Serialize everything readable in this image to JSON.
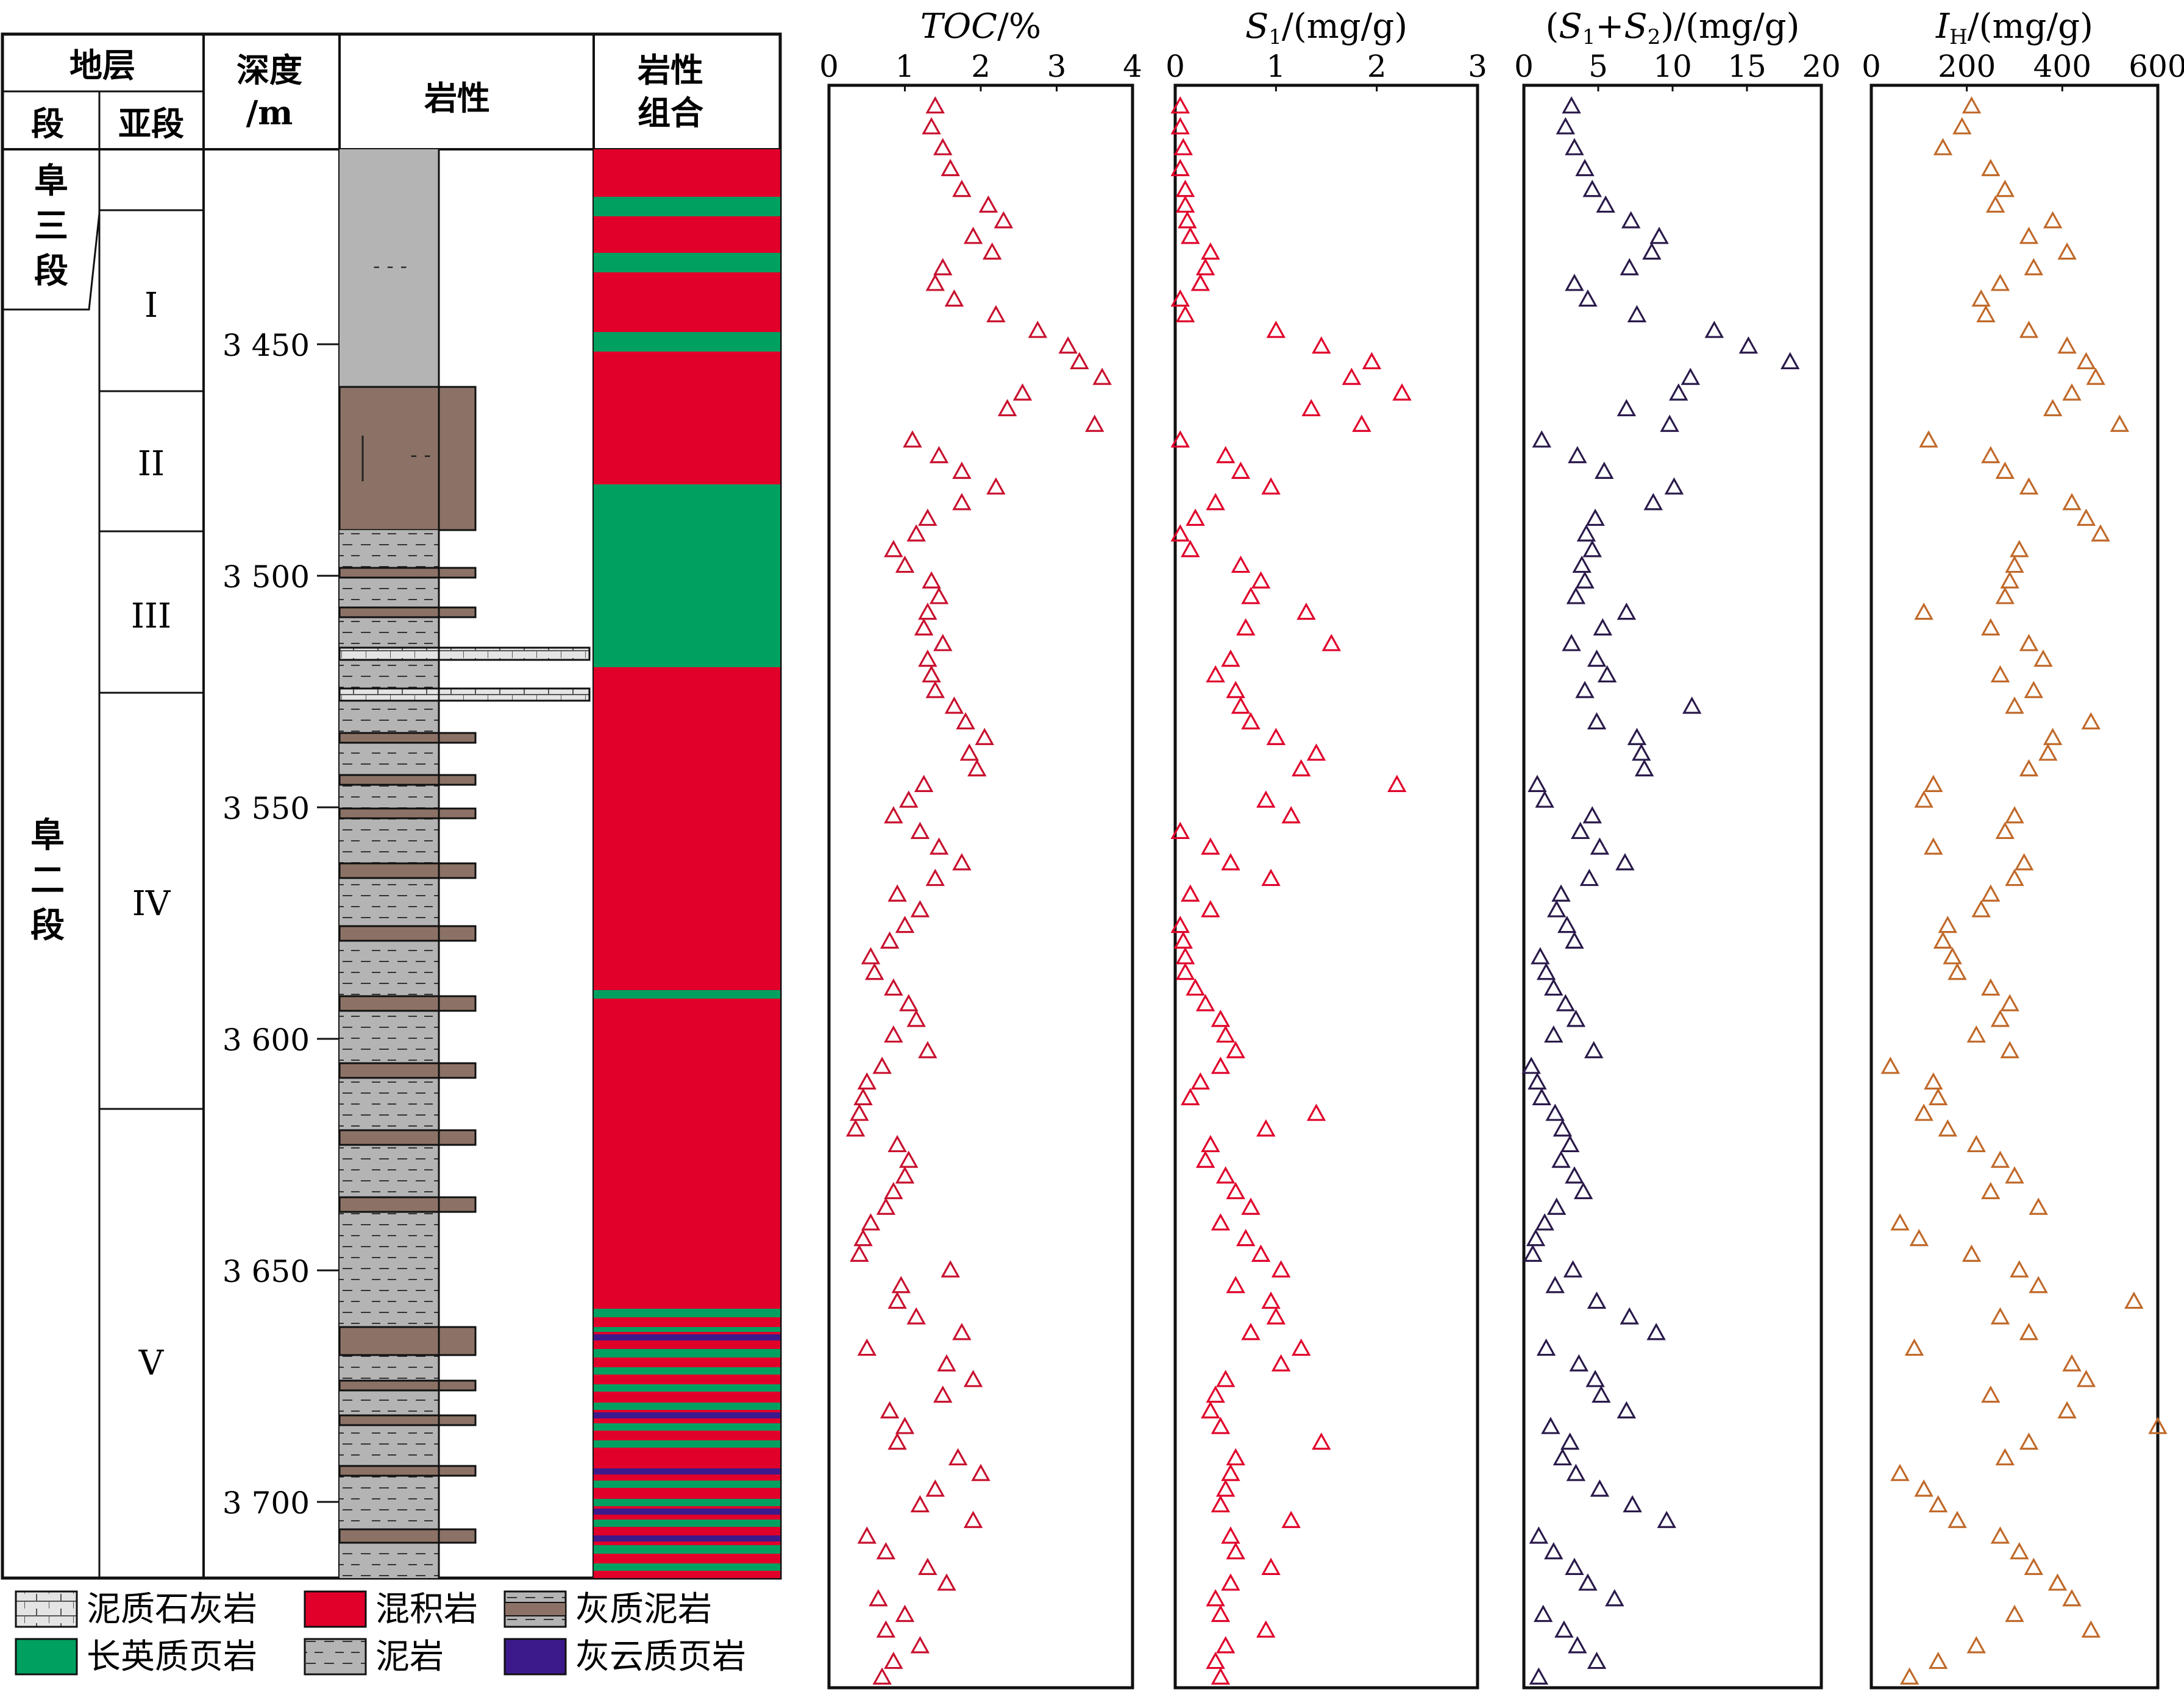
{
  "column_headers": {
    "strata": "地层",
    "member": "段",
    "submember": "亚段",
    "depth_line1": "深度",
    "depth_line2": "/m",
    "lithology": "岩性",
    "assemblage_line1": "岩性",
    "assemblage_line2": "组合"
  },
  "members": [
    {
      "name": "阜三段",
      "chars": [
        "阜",
        "三",
        "段"
      ]
    },
    {
      "name": "阜二段",
      "chars": [
        "阜",
        "二",
        "段"
      ]
    }
  ],
  "submembers": [
    "I",
    "II",
    "III",
    "IV",
    "V"
  ],
  "depth_axis": {
    "min": 3410,
    "max": 3717,
    "ticks": [
      3450,
      3500,
      3550,
      3600,
      3650,
      3700
    ],
    "tick_labels": [
      "3 450",
      "3 500",
      "3 550",
      "3 600",
      "3 650",
      "3 700"
    ]
  },
  "colors": {
    "hybrid": "#e0002a",
    "felsic": "#00a061",
    "dolomitic": "#3d1a8c",
    "mudstone": "#b4b4b4",
    "calcareous_mud": "#8c7266",
    "marl": "#e4e4e4",
    "toc": "#c8102e",
    "s1": "#e0002a",
    "s1s2": "#2a1a4a",
    "ih": "#c0692a"
  },
  "legend": [
    {
      "label": "泥质石灰岩",
      "swatch": "marl"
    },
    {
      "label": "混积岩",
      "swatch": "hybrid"
    },
    {
      "label": "灰质泥岩",
      "swatch": "calcareous_mud"
    },
    {
      "label": "长英质页岩",
      "swatch": "felsic"
    },
    {
      "label": "泥岩",
      "swatch": "mudstone"
    },
    {
      "label": "灰云质页岩",
      "swatch": "dolomitic"
    }
  ],
  "tracks": [
    {
      "key": "toc",
      "title": "TOC/%",
      "ticks": [
        0,
        1,
        2,
        3,
        4
      ],
      "tick_labels": [
        "0",
        "1",
        "2",
        "3",
        "4"
      ],
      "xlim": [
        0,
        4
      ]
    },
    {
      "key": "s1",
      "title": "S1/(mg/g)",
      "ticks": [
        0,
        1,
        2,
        3
      ],
      "tick_labels": [
        "0",
        "1",
        "2",
        "3"
      ],
      "xlim": [
        0,
        3
      ]
    },
    {
      "key": "s1s2",
      "title": "(S1+S2)/(mg/g)",
      "ticks": [
        0,
        5,
        10,
        15,
        20
      ],
      "tick_labels": [
        "0",
        "5",
        "10",
        "15",
        "20"
      ],
      "xlim": [
        0,
        20
      ]
    },
    {
      "key": "ih",
      "title": "IH/(mg/g)",
      "ticks": [
        0,
        200,
        400,
        600
      ],
      "tick_labels": [
        "0",
        "200",
        "400",
        "600"
      ],
      "xlim": [
        0,
        600
      ]
    }
  ],
  "chart_data": {
    "type": "scatter",
    "y_axis": {
      "label": "深度/m",
      "ylim": [
        3717,
        3410
      ],
      "reversed": true
    },
    "depth": [
      3414,
      3418,
      3422,
      3426,
      3430,
      3433,
      3436,
      3439,
      3442,
      3445,
      3448,
      3451,
      3454,
      3457,
      3460,
      3463,
      3466,
      3469,
      3472,
      3475,
      3478,
      3481,
      3484,
      3487,
      3490,
      3493,
      3496,
      3499,
      3502,
      3505,
      3508,
      3511,
      3514,
      3517,
      3520,
      3523,
      3526,
      3529,
      3532,
      3535,
      3538,
      3541,
      3544,
      3547,
      3550,
      3553,
      3556,
      3559,
      3562,
      3565,
      3568,
      3571,
      3574,
      3577,
      3580,
      3583,
      3586,
      3589,
      3592,
      3595,
      3598,
      3601,
      3604,
      3607,
      3610,
      3613,
      3616,
      3619,
      3622,
      3625,
      3628,
      3631,
      3634,
      3637,
      3640,
      3643,
      3646,
      3649,
      3652,
      3655,
      3658,
      3661,
      3664,
      3667,
      3670,
      3673,
      3676,
      3679,
      3682,
      3685,
      3688,
      3691,
      3694,
      3697,
      3700,
      3703,
      3706,
      3709,
      3712,
      3715
    ],
    "series": [
      {
        "name": "TOC/%",
        "key": "toc",
        "values": [
          1.4,
          1.35,
          1.5,
          1.6,
          1.75,
          2.1,
          2.3,
          1.9,
          2.15,
          1.5,
          1.4,
          1.65,
          2.2,
          2.75,
          3.15,
          3.3,
          3.6,
          2.55,
          2.35,
          3.5,
          1.1,
          1.45,
          1.75,
          2.2,
          1.75,
          1.3,
          1.15,
          0.85,
          1.0,
          1.35,
          1.45,
          1.3,
          1.25,
          1.5,
          1.3,
          1.35,
          1.4,
          1.65,
          1.8,
          2.05,
          1.85,
          1.95,
          1.25,
          1.05,
          0.85,
          1.2,
          1.45,
          1.75,
          1.4,
          0.9,
          1.2,
          1.0,
          0.8,
          0.55,
          0.6,
          0.85,
          1.05,
          1.15,
          0.85,
          1.3,
          0.7,
          0.5,
          0.45,
          0.4,
          0.35,
          0.9,
          1.05,
          1.0,
          0.85,
          0.75,
          0.55,
          0.45,
          0.4,
          1.6,
          0.95,
          0.9,
          1.15,
          1.75,
          0.5,
          1.55,
          1.9,
          1.5,
          0.8,
          1.0,
          0.9,
          1.7,
          2.0,
          1.4,
          1.2,
          1.9,
          0.5,
          0.75,
          1.3,
          1.55,
          0.65,
          1.0,
          0.75,
          1.2,
          0.85,
          0.7
        ]
      },
      {
        "name": "S1/(mg/g)",
        "key": "s1",
        "values": [
          0.05,
          0.05,
          0.08,
          0.05,
          0.1,
          0.1,
          0.12,
          0.15,
          0.35,
          0.3,
          0.25,
          0.05,
          0.1,
          1.0,
          1.45,
          1.95,
          1.75,
          2.25,
          1.35,
          1.85,
          0.05,
          0.5,
          0.65,
          0.95,
          0.4,
          0.2,
          0.05,
          0.15,
          0.65,
          0.85,
          0.75,
          1.3,
          0.7,
          1.55,
          0.55,
          0.4,
          0.6,
          0.65,
          0.75,
          1.0,
          1.4,
          1.25,
          2.2,
          0.9,
          1.15,
          0.05,
          0.35,
          0.55,
          0.95,
          0.15,
          0.35,
          0.05,
          0.08,
          0.1,
          0.1,
          0.2,
          0.3,
          0.45,
          0.5,
          0.6,
          0.45,
          0.25,
          0.15,
          1.4,
          0.9,
          0.35,
          0.3,
          0.5,
          0.6,
          0.75,
          0.45,
          0.7,
          0.85,
          1.05,
          0.6,
          0.95,
          1.0,
          0.75,
          1.25,
          1.05,
          0.5,
          0.4,
          0.35,
          0.45,
          1.45,
          0.6,
          0.55,
          0.5,
          0.45,
          1.15,
          0.55,
          0.6,
          0.95,
          0.55,
          0.4,
          0.45,
          0.9,
          0.5,
          0.4,
          0.45
        ]
      },
      {
        "name": "(S1+S2)/(mg/g)",
        "key": "s1s2",
        "values": [
          3.2,
          2.8,
          3.4,
          4.1,
          4.6,
          5.5,
          7.2,
          9.1,
          8.6,
          7.1,
          3.4,
          4.3,
          7.6,
          12.8,
          15.1,
          17.9,
          11.2,
          10.4,
          6.9,
          9.8,
          1.2,
          3.6,
          5.4,
          10.1,
          8.7,
          4.8,
          4.2,
          4.6,
          3.9,
          4.1,
          3.5,
          6.9,
          5.3,
          3.2,
          4.9,
          5.6,
          4.1,
          11.3,
          4.9,
          7.6,
          7.9,
          8.1,
          0.9,
          1.4,
          4.6,
          3.8,
          5.1,
          6.8,
          4.4,
          2.5,
          2.2,
          2.9,
          3.4,
          1.1,
          1.5,
          2.0,
          2.8,
          3.5,
          2.0,
          4.7,
          0.5,
          0.9,
          1.2,
          2.1,
          2.6,
          3.1,
          2.5,
          3.4,
          4.0,
          2.2,
          1.4,
          0.8,
          0.6,
          3.3,
          2.1,
          4.9,
          7.1,
          8.9,
          1.5,
          3.7,
          4.8,
          5.2,
          6.9,
          1.8,
          3.1,
          2.6,
          3.5,
          5.1,
          7.3,
          9.6,
          1.0,
          2.0,
          3.4,
          4.3,
          6.1,
          1.3,
          2.7,
          3.6,
          4.9,
          1.0
        ]
      },
      {
        "name": "IH/(mg/g)",
        "key": "ih",
        "values": [
          210,
          190,
          150,
          250,
          280,
          260,
          380,
          330,
          410,
          340,
          270,
          230,
          240,
          330,
          410,
          450,
          470,
          420,
          380,
          520,
          120,
          250,
          280,
          330,
          420,
          450,
          480,
          310,
          300,
          290,
          280,
          110,
          250,
          330,
          360,
          270,
          340,
          300,
          460,
          380,
          370,
          330,
          130,
          110,
          300,
          280,
          130,
          320,
          300,
          250,
          230,
          160,
          150,
          170,
          180,
          250,
          290,
          270,
          220,
          290,
          40,
          130,
          140,
          110,
          160,
          220,
          270,
          300,
          250,
          350,
          60,
          100,
          210,
          310,
          350,
          550,
          270,
          330,
          90,
          420,
          450,
          250,
          410,
          600,
          330,
          280,
          60,
          110,
          140,
          180,
          270,
          310,
          340,
          390,
          420,
          300,
          460,
          220,
          140,
          80
        ]
      }
    ]
  }
}
